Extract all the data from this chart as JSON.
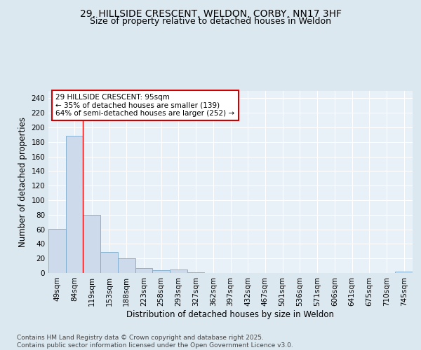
{
  "title_line1": "29, HILLSIDE CRESCENT, WELDON, CORBY, NN17 3HF",
  "title_line2": "Size of property relative to detached houses in Weldon",
  "xlabel": "Distribution of detached houses by size in Weldon",
  "ylabel": "Number of detached properties",
  "categories": [
    "49sqm",
    "84sqm",
    "119sqm",
    "153sqm",
    "188sqm",
    "223sqm",
    "258sqm",
    "293sqm",
    "327sqm",
    "362sqm",
    "397sqm",
    "432sqm",
    "467sqm",
    "501sqm",
    "536sqm",
    "571sqm",
    "606sqm",
    "641sqm",
    "675sqm",
    "710sqm",
    "745sqm"
  ],
  "values": [
    61,
    188,
    80,
    29,
    20,
    7,
    4,
    5,
    1,
    0,
    0,
    0,
    0,
    0,
    0,
    0,
    0,
    0,
    0,
    0,
    2
  ],
  "bar_color": "#ccdaeb",
  "bar_edge_color": "#7aaacb",
  "ylim": [
    0,
    250
  ],
  "yticks": [
    0,
    20,
    40,
    60,
    80,
    100,
    120,
    140,
    160,
    180,
    200,
    220,
    240
  ],
  "red_line_x": 1.5,
  "annotation_line1": "29 HILLSIDE CRESCENT: 95sqm",
  "annotation_line2": "← 35% of detached houses are smaller (139)",
  "annotation_line3": "64% of semi-detached houses are larger (252) →",
  "annotation_box_color": "#ffffff",
  "annotation_border_color": "#cc0000",
  "footer_text": "Contains HM Land Registry data © Crown copyright and database right 2025.\nContains public sector information licensed under the Open Government Licence v3.0.",
  "bg_color": "#dce8f0",
  "plot_bg_color": "#e8f0f8",
  "grid_color": "#ffffff",
  "title_fontsize": 10,
  "subtitle_fontsize": 9,
  "axis_label_fontsize": 8.5,
  "tick_fontsize": 7.5,
  "annotation_fontsize": 7.5,
  "footer_fontsize": 6.5
}
